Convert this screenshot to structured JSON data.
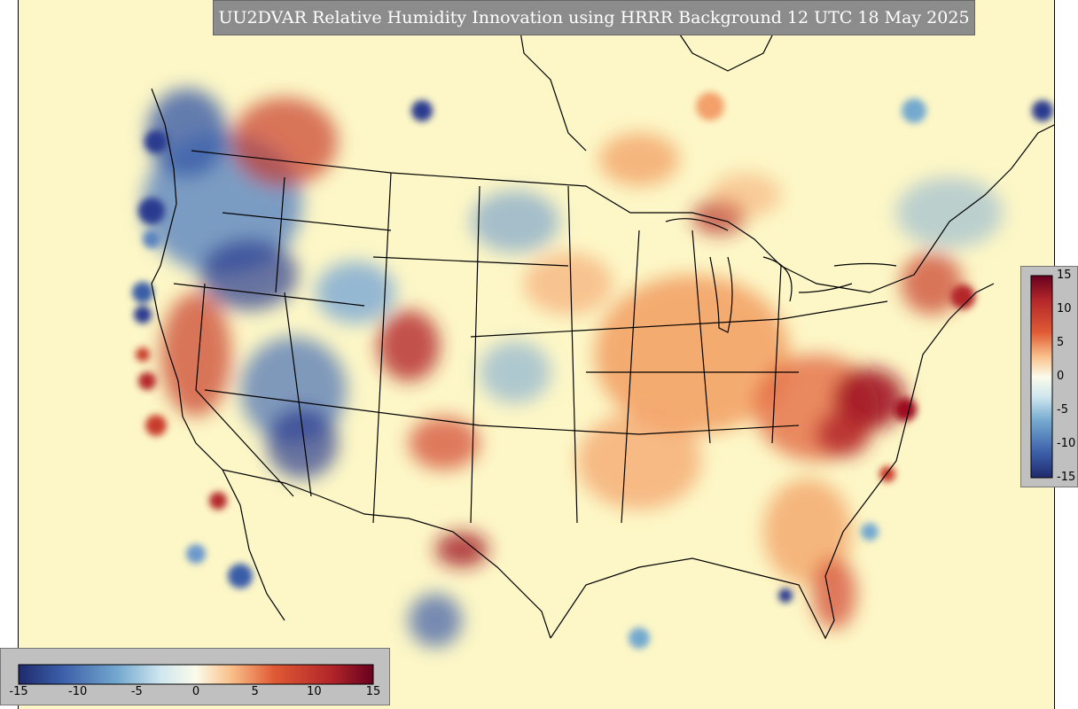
{
  "title": "UU2DVAR Relative Humidity Innovation using HRRR Background 12 UTC 18 May 2025",
  "colorbar": {
    "min": -15,
    "max": 15,
    "colors": {
      "low": "#2b3a8f",
      "mid_low": "#74a9cf",
      "neutral": "#fdf7c7",
      "mid_high": "#f58a4b",
      "high": "#8e0a1e"
    },
    "vertical_ticks": [
      {
        "label": "15",
        "value": 15
      },
      {
        "label": "10",
        "value": 10
      },
      {
        "label": "5",
        "value": 5
      },
      {
        "label": "0",
        "value": 0
      },
      {
        "label": "-5",
        "value": -5
      },
      {
        "label": "-10",
        "value": -10
      },
      {
        "label": "-15",
        "value": -15
      }
    ],
    "horizontal_ticks": [
      {
        "label": "-15",
        "value": -15
      },
      {
        "label": "-10",
        "value": -10
      },
      {
        "label": "-5",
        "value": -5
      },
      {
        "label": "0",
        "value": 0
      },
      {
        "label": "5",
        "value": 5
      },
      {
        "label": "10",
        "value": 10
      },
      {
        "label": "15",
        "value": 15
      }
    ]
  },
  "map": {
    "background": "#fdf7c7",
    "boundary_color": "#000000"
  }
}
